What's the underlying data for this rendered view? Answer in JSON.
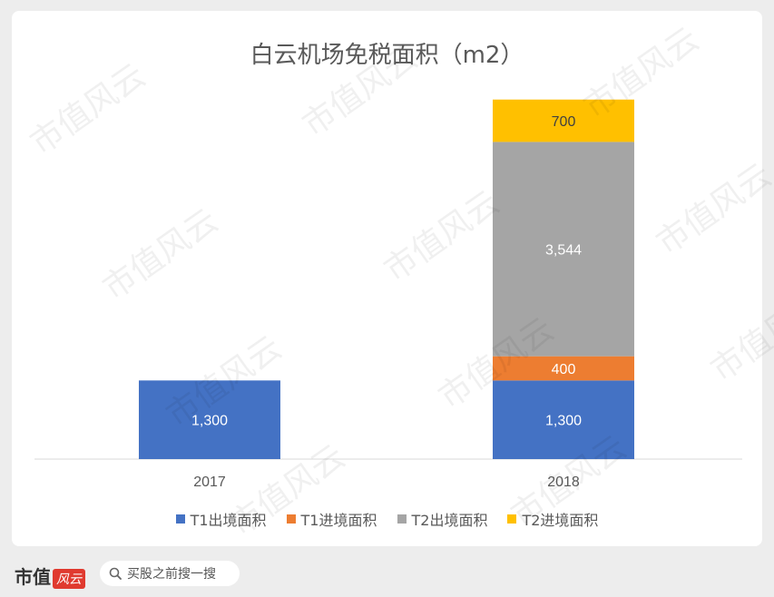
{
  "chart_data": {
    "type": "bar",
    "stacked": true,
    "title": "白云机场免税面积（m2）",
    "categories": [
      "2017",
      "2018"
    ],
    "series": [
      {
        "name": "T1出境面积",
        "color": "#4472c4",
        "values": [
          1300,
          1300
        ],
        "labels": [
          "1,300",
          "1,300"
        ]
      },
      {
        "name": "T1进境面积",
        "color": "#ed7d31",
        "values": [
          0,
          400
        ],
        "labels": [
          "",
          "400"
        ]
      },
      {
        "name": "T2出境面积",
        "color": "#a5a5a5",
        "values": [
          0,
          3544
        ],
        "labels": [
          "",
          "3,544"
        ]
      },
      {
        "name": "T2进境面积",
        "color": "#ffc000",
        "values": [
          0,
          700
        ],
        "labels": [
          "",
          "700"
        ]
      }
    ],
    "ylim": [
      0,
      6000
    ],
    "legend": "bottom",
    "grid": false
  },
  "watermark": {
    "text": "市值风云"
  },
  "footer": {
    "brand_text": "市值",
    "brand_stamp": "风云",
    "search_placeholder": "买股之前搜一搜",
    "search_icon": "search-icon"
  }
}
